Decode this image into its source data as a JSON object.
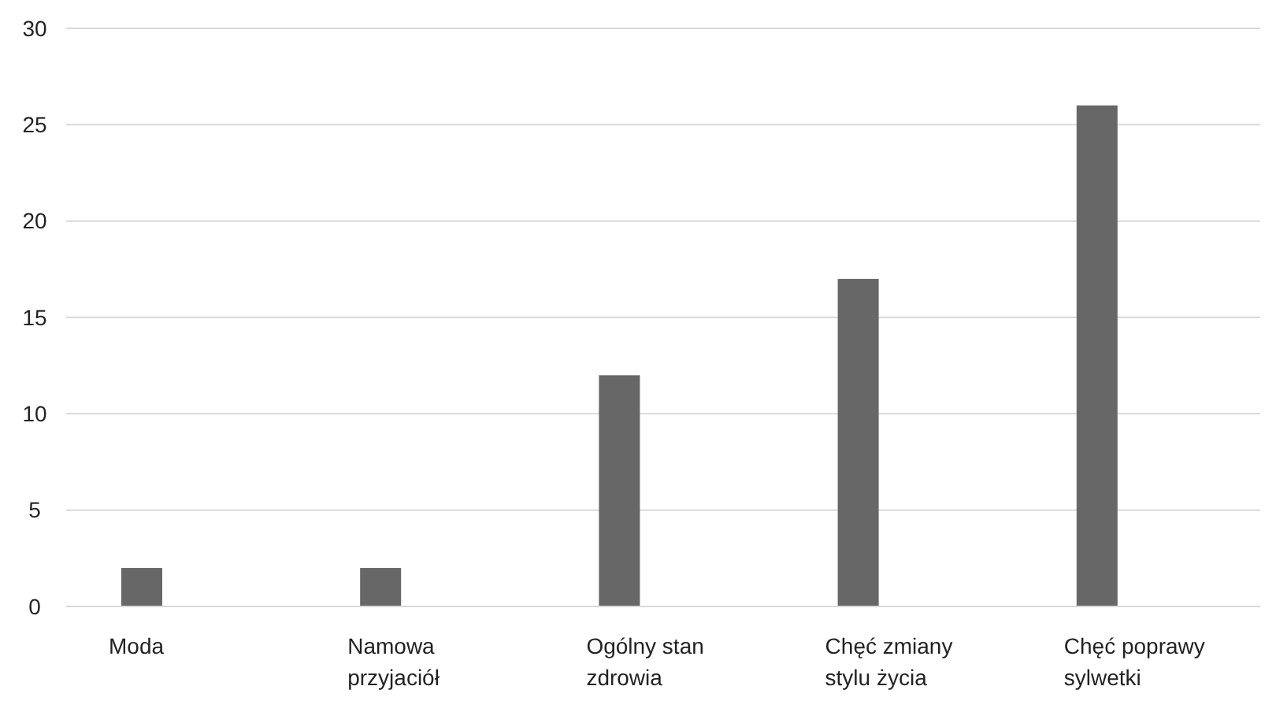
{
  "chart_data": {
    "type": "bar",
    "categories": [
      "Moda",
      "Namowa przyjaciół",
      "Ogólny stan zdrowia",
      "Chęć zmiany stylu życia",
      "Chęć poprawy sylwetki"
    ],
    "values": [
      2,
      2,
      12,
      17,
      26
    ],
    "color": "#676767",
    "ylim": [
      0,
      30
    ],
    "yticks": [
      0,
      5,
      10,
      15,
      20,
      25,
      30
    ],
    "grid": "y"
  }
}
